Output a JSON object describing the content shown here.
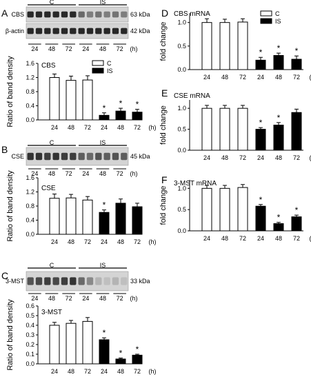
{
  "chart_data": [
    {
      "type": "bar",
      "panel": "A",
      "title": "CBS",
      "categories": [
        "24",
        "48",
        "72",
        "24",
        "48",
        "72"
      ],
      "x_unit": "(h)",
      "ylabel": "Ratio of band density",
      "ylim": [
        0,
        1.6
      ],
      "yticks": [
        "0.0",
        "0.4",
        "0.8",
        "1.2",
        "1.6"
      ],
      "legend": {
        "placement": "top-right",
        "items": [
          "C",
          "IS"
        ]
      },
      "series": [
        {
          "name": "C",
          "values": [
            1.2,
            1.12,
            1.13,
            null,
            null,
            null
          ],
          "errors": [
            0.1,
            0.12,
            0.12,
            null,
            null,
            null
          ]
        },
        {
          "name": "IS",
          "values": [
            null,
            null,
            null,
            0.13,
            0.25,
            0.22
          ],
          "errors": [
            null,
            null,
            null,
            0.07,
            0.08,
            0.08
          ]
        }
      ],
      "significance": [
        "",
        "",
        "",
        "*",
        "*",
        "*"
      ],
      "blot": {
        "groups": [
          "C",
          "IS"
        ],
        "bands": [
          {
            "name": "CBS",
            "kda": "63 kDa"
          },
          {
            "name": "β-actin",
            "kda": "42 kDa"
          }
        ]
      }
    },
    {
      "type": "bar",
      "panel": "B",
      "title": "CSE",
      "categories": [
        "24",
        "48",
        "72",
        "24",
        "48",
        "72"
      ],
      "x_unit": "(h)",
      "ylabel": "Ratio of band density",
      "ylim": [
        0,
        1.6
      ],
      "yticks": [
        "0.0",
        "0.4",
        "0.8",
        "1.2",
        "1.6"
      ],
      "series": [
        {
          "name": "C",
          "values": [
            1.02,
            1.03,
            0.97,
            null,
            null,
            null
          ],
          "errors": [
            0.12,
            0.1,
            0.1,
            null,
            null,
            null
          ]
        },
        {
          "name": "IS",
          "values": [
            null,
            null,
            null,
            0.62,
            0.88,
            0.78
          ],
          "errors": [
            null,
            null,
            null,
            0.07,
            0.12,
            0.1
          ]
        }
      ],
      "significance": [
        "",
        "",
        "",
        "*",
        "",
        ""
      ],
      "blot": {
        "groups": [
          "C",
          "IS"
        ],
        "bands": [
          {
            "name": "CSE",
            "kda": "45 kDa"
          }
        ]
      }
    },
    {
      "type": "bar",
      "panel": "C",
      "title": "3-MST",
      "categories": [
        "24",
        "48",
        "72",
        "24",
        "48",
        "72"
      ],
      "x_unit": "(h)",
      "ylabel": "Ratio of band density",
      "ylim": [
        0,
        0.6
      ],
      "yticks": [
        "0.0",
        "0.1",
        "0.2",
        "0.3",
        "0.4",
        "0.5",
        "0.6"
      ],
      "series": [
        {
          "name": "C",
          "values": [
            0.4,
            0.42,
            0.44,
            null,
            null,
            null
          ],
          "errors": [
            0.03,
            0.03,
            0.04,
            null,
            null,
            null
          ]
        },
        {
          "name": "IS",
          "values": [
            null,
            null,
            null,
            0.25,
            0.05,
            0.09
          ],
          "errors": [
            null,
            null,
            null,
            0.02,
            0.01,
            0.01
          ]
        }
      ],
      "significance": [
        "",
        "",
        "",
        "*",
        "*",
        "*"
      ],
      "blot": {
        "groups": [
          "C",
          "IS"
        ],
        "bands": [
          {
            "name": "3-MST",
            "kda": "33 kDa"
          }
        ]
      }
    },
    {
      "type": "bar",
      "panel": "D",
      "title": "CBS mRNA",
      "categories": [
        "24",
        "48",
        "72",
        "24",
        "48",
        "72"
      ],
      "x_unit": "(h)",
      "ylabel": "fold change",
      "ylim": [
        0,
        1.2
      ],
      "yticks": [
        "0.0",
        "0.5",
        "1.0"
      ],
      "legend": {
        "placement": "top-right",
        "items": [
          "C",
          "IS"
        ]
      },
      "series": [
        {
          "name": "C",
          "values": [
            1.0,
            1.0,
            1.01,
            null,
            null,
            null
          ],
          "errors": [
            0.08,
            0.07,
            0.07,
            null,
            null,
            null
          ]
        },
        {
          "name": "IS",
          "values": [
            null,
            null,
            null,
            0.2,
            0.3,
            0.22
          ],
          "errors": [
            null,
            null,
            null,
            0.06,
            0.05,
            0.07
          ]
        }
      ],
      "significance": [
        "",
        "",
        "",
        "*",
        "*",
        "*"
      ]
    },
    {
      "type": "bar",
      "panel": "E",
      "title": "CSE mRNA",
      "categories": [
        "24",
        "48",
        "72",
        "24",
        "48",
        "72"
      ],
      "x_unit": "(h)",
      "ylabel": "fold change",
      "ylim": [
        0,
        1.2
      ],
      "yticks": [
        "0.0",
        "0.5",
        "1.0"
      ],
      "series": [
        {
          "name": "C",
          "values": [
            1.0,
            1.0,
            1.0,
            null,
            null,
            null
          ],
          "errors": [
            0.07,
            0.07,
            0.07,
            null,
            null,
            null
          ]
        },
        {
          "name": "IS",
          "values": [
            null,
            null,
            null,
            0.5,
            0.6,
            0.9
          ],
          "errors": [
            null,
            null,
            null,
            0.04,
            0.06,
            0.08
          ]
        }
      ],
      "significance": [
        "",
        "",
        "",
        "*",
        "*",
        ""
      ]
    },
    {
      "type": "bar",
      "panel": "F",
      "title": "3-MST mRNA",
      "categories": [
        "24",
        "48",
        "72",
        "24",
        "48",
        "72"
      ],
      "x_unit": "(h)",
      "ylabel": "fold change",
      "ylim": [
        0,
        1.2
      ],
      "yticks": [
        "0.0",
        "0.5",
        "1.0"
      ],
      "series": [
        {
          "name": "C",
          "values": [
            1.0,
            1.0,
            1.02,
            null,
            null,
            null
          ],
          "errors": [
            0.07,
            0.07,
            0.07,
            null,
            null,
            null
          ]
        },
        {
          "name": "IS",
          "values": [
            null,
            null,
            null,
            0.58,
            0.17,
            0.33
          ],
          "errors": [
            null,
            null,
            null,
            0.04,
            0.03,
            0.04
          ]
        }
      ],
      "significance": [
        "",
        "",
        "",
        "*",
        "*",
        "*"
      ]
    }
  ]
}
